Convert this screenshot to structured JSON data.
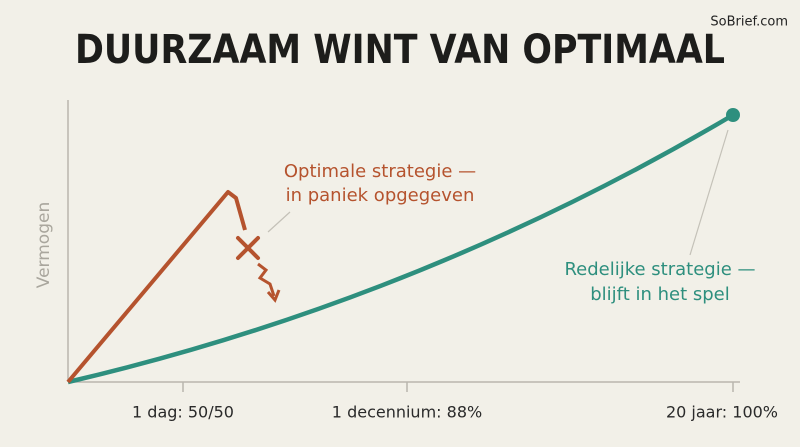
{
  "brand": "SoBrief.com",
  "title": "DUURZAAM WINT VAN OPTIMAAL",
  "y_axis_label": "Vermogen",
  "x_labels": [
    "1 dag: 50/50",
    "1 decennium: 88%",
    "20 jaar: 100%"
  ],
  "annotations": {
    "optimal": [
      "Optimale strategie —",
      "in paniek opgegeven"
    ],
    "reasonable": [
      "Redelijke strategie —",
      "blijft in het spel"
    ]
  }
}
